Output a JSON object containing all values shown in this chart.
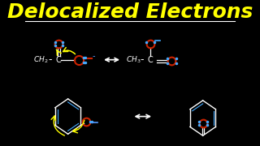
{
  "background_color": "#000000",
  "title": "Delocalized Electrons",
  "title_color": "#FFFF00",
  "title_fontsize": 18,
  "white_color": "#FFFFFF",
  "red_color": "#CC2200",
  "blue_color": "#5599FF",
  "yellow_color": "#FFFF00",
  "cyan_color": "#44AAFF"
}
